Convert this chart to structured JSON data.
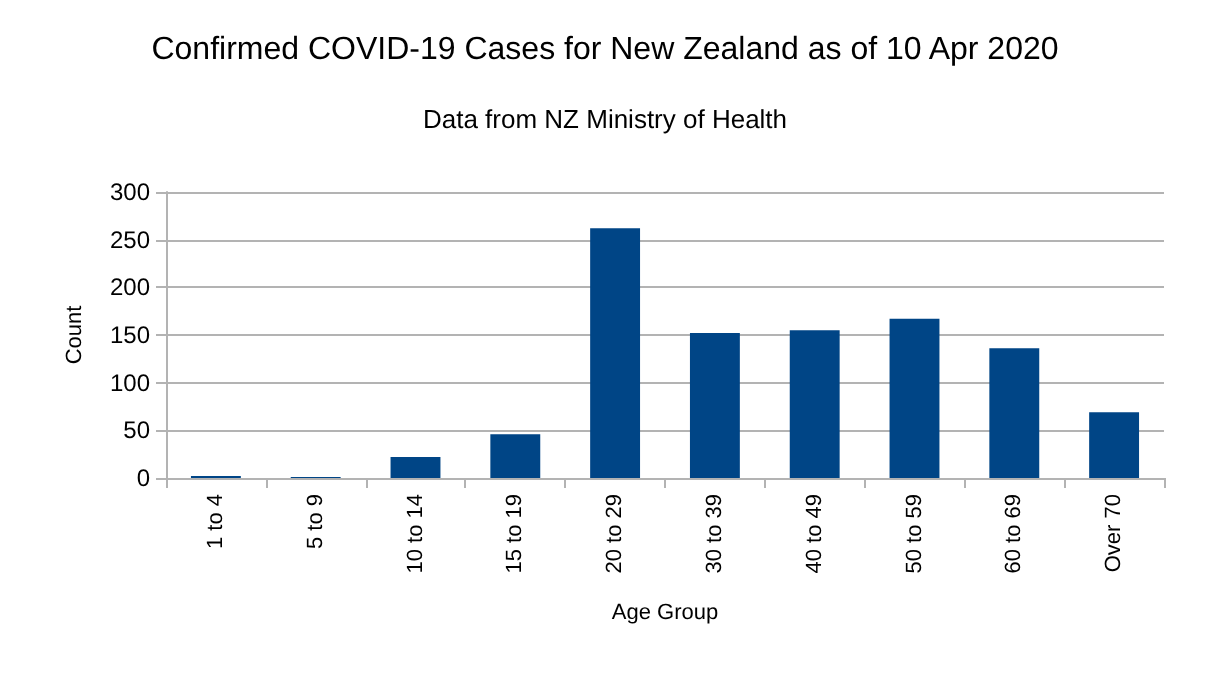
{
  "chart_data": {
    "type": "bar",
    "title": "Confirmed COVID-19 Cases for New Zealand as of 10 Apr 2020",
    "subtitle": "Data from NZ Ministry of Health",
    "xlabel": "Age Group",
    "ylabel": "Count",
    "categories": [
      "1 to 4",
      "5 to 9",
      "10 to 14",
      "15 to 19",
      "20 to 29",
      "30 to 39",
      "40 to 49",
      "50 to 59",
      "60 to 69",
      "Over 70"
    ],
    "values": [
      2,
      1,
      22,
      46,
      262,
      152,
      155,
      167,
      136,
      69
    ],
    "color": "#004586",
    "ylim": [
      0,
      300
    ],
    "yticks": [
      0,
      50,
      100,
      150,
      200,
      250,
      300
    ],
    "grid": "y"
  }
}
